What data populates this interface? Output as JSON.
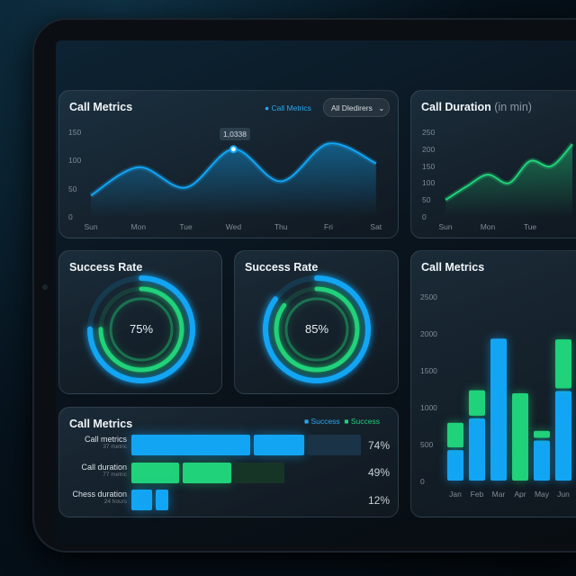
{
  "colors": {
    "blue": "#12a5f4",
    "green": "#20d27a"
  },
  "line_card": {
    "title": "Call Metrics",
    "legend": "Call Metrics",
    "dropdown": "All Dledirers",
    "tooltip": "1,0338",
    "y_ticks": [
      "150",
      "100",
      "50",
      "0"
    ],
    "chart_data": {
      "type": "line",
      "categories": [
        "Sun",
        "Mon",
        "Tue",
        "Wed",
        "Thu",
        "Fri",
        "Sat"
      ],
      "values": [
        38,
        88,
        52,
        120,
        63,
        130,
        95
      ],
      "ylim": [
        0,
        150
      ]
    }
  },
  "duration_card": {
    "title": "Call Duration",
    "subtitle": "(in min)",
    "y_ticks": [
      "250",
      "200",
      "150",
      "100",
      "50",
      "0"
    ],
    "chart_data": {
      "type": "line",
      "categories": [
        "Sun",
        "Mon",
        "Tue"
      ],
      "x": [
        0,
        0.5,
        1,
        1.5,
        2,
        2.5,
        3
      ],
      "values": [
        50,
        90,
        125,
        100,
        165,
        150,
        215
      ],
      "ylim": [
        0,
        250
      ]
    }
  },
  "success1": {
    "title": "Success Rate",
    "value": "75%",
    "percent": 75
  },
  "success2": {
    "title": "Success Rate",
    "value": "85%",
    "percent": 85
  },
  "hbar_card": {
    "title": "Call Metrics",
    "legend": [
      "Success",
      "Success"
    ],
    "rows": [
      {
        "label": "Call metrics",
        "sub": "37 metric",
        "value": "74%"
      },
      {
        "label": "Call duration",
        "sub": "77 metric",
        "value": "49%"
      },
      {
        "label": "Chess duration",
        "sub": "24 hours",
        "value": "12%"
      }
    ]
  },
  "bar_card": {
    "title": "Call Metrics",
    "y_ticks": [
      "2500",
      "2000",
      "1500",
      "1000",
      "500",
      "0"
    ],
    "chart_data": {
      "type": "bar",
      "stacked": true,
      "categories": [
        "Jan",
        "Feb",
        "Mar",
        "Apr",
        "May",
        "Jun"
      ],
      "ylim": [
        0,
        2500
      ],
      "series": [
        {
          "color": "blue",
          "values": [
            450,
            880,
            1960,
            0,
            580,
            1250
          ]
        },
        {
          "color": "green",
          "values": [
            370,
            380,
            0,
            1220,
            130,
            700
          ]
        }
      ]
    }
  }
}
